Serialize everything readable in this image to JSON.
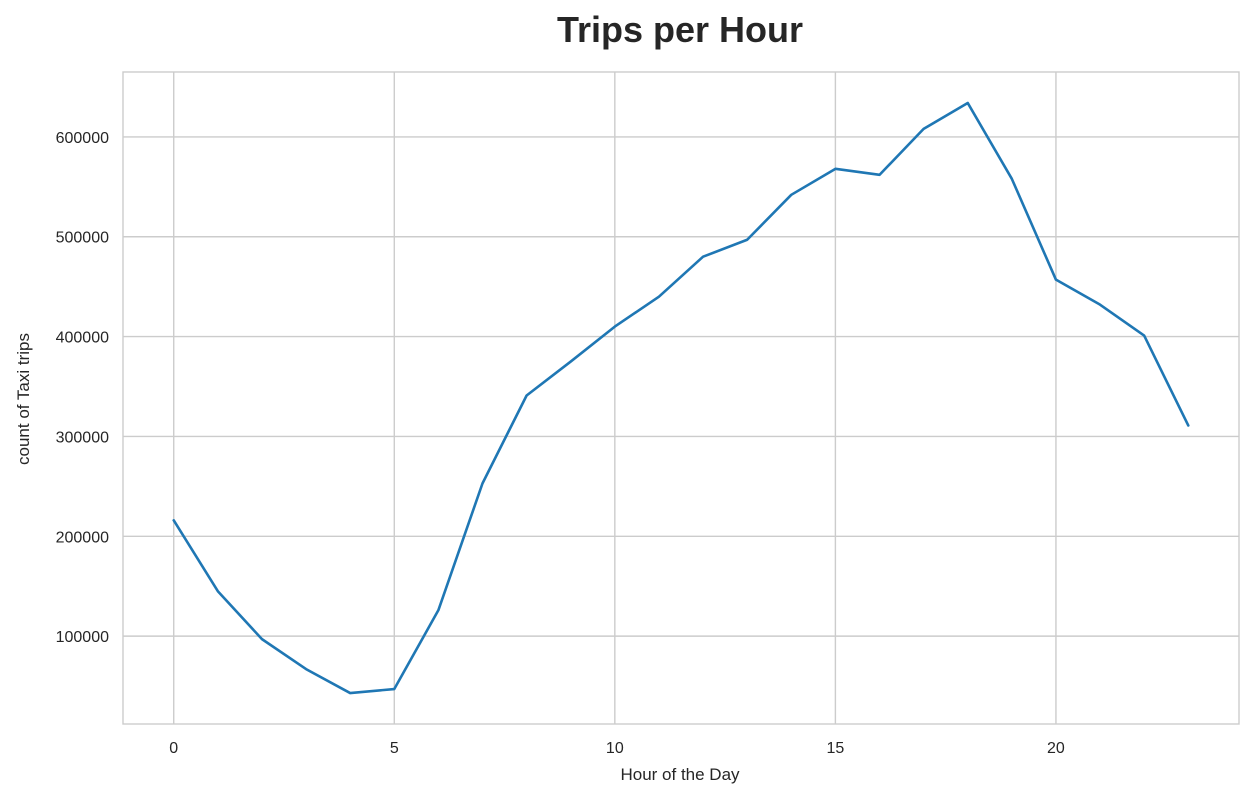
{
  "chart_data": {
    "type": "line",
    "title": "Trips per Hour",
    "xlabel": "Hour of the Day",
    "ylabel": "count of Taxi trips",
    "x": [
      0,
      1,
      2,
      3,
      4,
      5,
      6,
      7,
      8,
      9,
      10,
      11,
      12,
      13,
      14,
      15,
      16,
      17,
      18,
      19,
      20,
      21,
      22,
      23
    ],
    "series": [
      {
        "values": [
          216000,
          145000,
          97000,
          67000,
          43000,
          47000,
          126000,
          253000,
          341000,
          375000,
          410000,
          440000,
          480000,
          497000,
          542000,
          568000,
          562000,
          608000,
          634000,
          558000,
          457000,
          432000,
          401000,
          311000
        ],
        "color": "#1f77b4"
      }
    ],
    "xlim": [
      -1.15,
      24.15
    ],
    "ylim": [
      12000,
      665000
    ],
    "x_ticks": [
      0,
      5,
      10,
      15,
      20
    ],
    "x_tick_labels": [
      "0",
      "5",
      "10",
      "15",
      "20"
    ],
    "y_ticks": [
      100000,
      200000,
      300000,
      400000,
      500000,
      600000
    ],
    "y_tick_labels": [
      "100000",
      "200000",
      "300000",
      "400000",
      "500000",
      "600000"
    ],
    "grid": true,
    "legend": "none"
  },
  "colors": {
    "background": "#ffffff",
    "grid": "#cccccc",
    "text": "#262626"
  }
}
